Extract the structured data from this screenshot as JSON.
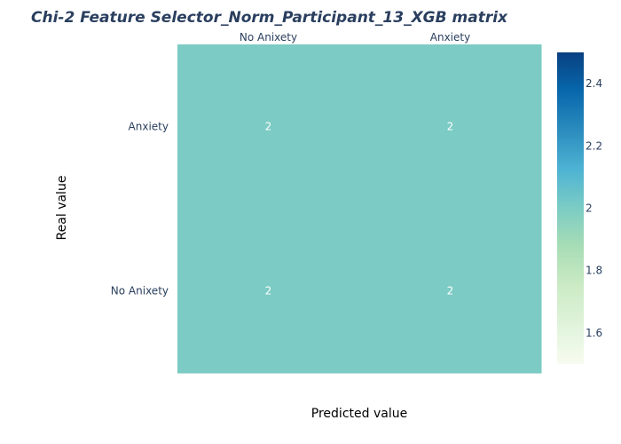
{
  "chart_data": {
    "type": "heatmap",
    "title": "Chi-2 Feature Selector_Norm_Participant_13_XGB matrix",
    "xlabel": "Predicted value",
    "ylabel": "Real value",
    "x_categories": [
      "No Anixety",
      "Anxiety"
    ],
    "y_categories": [
      "Anxiety",
      "No Anixety"
    ],
    "z": [
      [
        2,
        2
      ],
      [
        2,
        2
      ]
    ],
    "colorscale": "GnBu",
    "colors": {
      "cell": "#7ccbc4",
      "scale_low": "#f7fcf0",
      "scale_high": "#084081"
    },
    "colorbar": {
      "range": [
        1.5,
        2.5
      ],
      "ticks": [
        1.6,
        1.8,
        2,
        2.2,
        2.4
      ],
      "tick_labels": [
        "1.6",
        "1.8",
        "2",
        "2.2",
        "2.4"
      ]
    },
    "x_axis_side": "top"
  }
}
